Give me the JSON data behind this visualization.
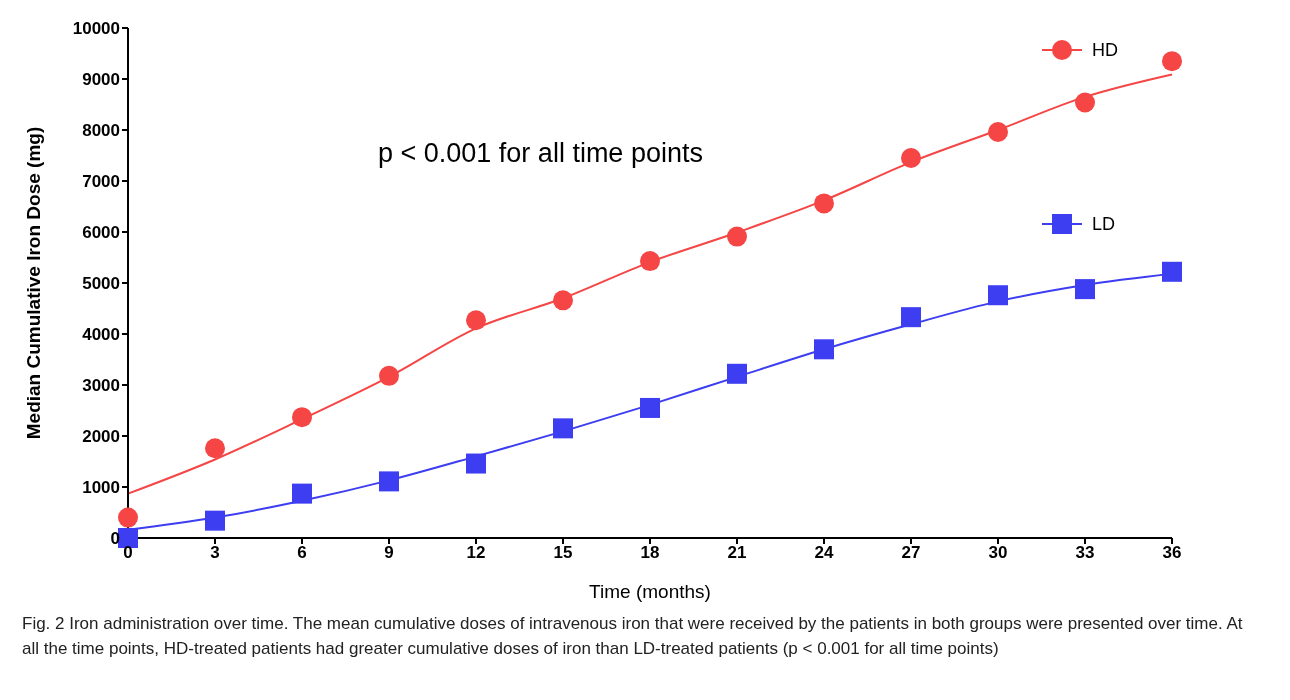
{
  "chart_data": {
    "type": "scatter",
    "xlabel": "Time (months)",
    "ylabel": "Median Cumulative Iron Dose (mg)",
    "x": [
      0,
      3,
      6,
      9,
      12,
      15,
      18,
      21,
      24,
      27,
      30,
      33,
      36
    ],
    "series": [
      {
        "name": "HD",
        "marker": "circle",
        "color": "#f54545",
        "values": [
          400,
          1760,
          2370,
          3180,
          4270,
          4660,
          5430,
          5910,
          6560,
          7450,
          7960,
          8540,
          9350
        ]
      },
      {
        "name": "LD",
        "marker": "square",
        "color": "#3d3df2",
        "values": [
          0,
          340,
          870,
          1110,
          1460,
          2150,
          2550,
          3220,
          3700,
          4330,
          4760,
          4880,
          5220
        ]
      },
      {
        "type": "line",
        "marker": "none",
        "color": "#f54545",
        "values": [
          870,
          1540,
          2330,
          3160,
          4110,
          4700,
          5410,
          5990,
          6620,
          7370,
          8000,
          8650,
          9090
        ]
      },
      {
        "type": "line",
        "marker": "none",
        "color": "#3d3df2",
        "values": [
          160,
          400,
          730,
          1130,
          1600,
          2090,
          2610,
          3160,
          3700,
          4190,
          4640,
          4960,
          5180
        ]
      }
    ],
    "xlim": [
      0,
      36
    ],
    "xticks": [
      0,
      3,
      6,
      9,
      12,
      15,
      18,
      21,
      24,
      27,
      30,
      33,
      36
    ],
    "ylim": [
      0,
      10000
    ],
    "yticks": [
      0,
      1000,
      2000,
      3000,
      4000,
      5000,
      6000,
      7000,
      8000,
      9000,
      10000
    ],
    "grid": false,
    "legend": "top right",
    "annotations": [
      "p < 0.001 for all time points",
      "Fig. 2 Iron administration over time. The mean cumulative doses of intravenous iron that were received by the patients in both groups were presented over time. At all the time points, HD-treated patients had greater cumulative doses of iron than LD-treated patients (p < 0.001 for all time points)"
    ]
  }
}
